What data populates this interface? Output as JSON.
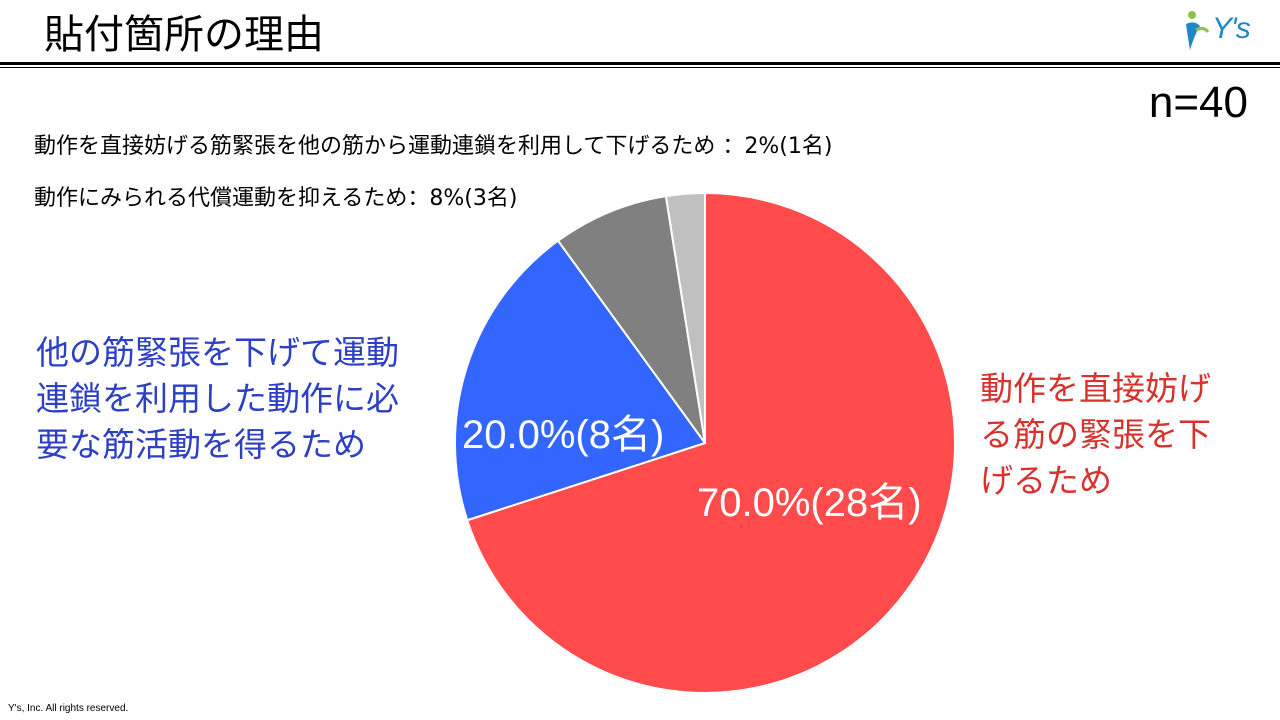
{
  "header": {
    "title": "貼付箇所の理由",
    "logo_text": "Y's"
  },
  "sample_size": "n=40",
  "notes": {
    "smallest": "動作を直接妨げる筋緊張を他の筋から運動連鎖を利用して下げるため ：2%(1名)",
    "second_smallest": "動作にみられる代償運動を抑えるため：8%(3名)"
  },
  "labels": {
    "blue_line1": "他の筋緊張を下げて運動",
    "blue_line2": "連鎖を利用した動作に必",
    "blue_line3": "要な筋活動を得るため",
    "red_line1": "動作を直接妨げ",
    "red_line2": "る筋の緊張を下",
    "red_line3": "げるため",
    "blue_pct": "20.0%(8名)",
    "red_pct": "70.0%(28名)"
  },
  "footer": "Y's, Inc. All rights reserved.",
  "chart_data": {
    "type": "pie",
    "start": "12 o'clock",
    "direction": "clockwise",
    "slices": [
      {
        "label": "動作を直接妨げる筋の緊張を下げるため",
        "value": 70.0,
        "count": 28,
        "color": "#ff4b4b"
      },
      {
        "label": "他の筋緊張を下げて運動連鎖を利用した動作に必要な筋活動を得るため",
        "value": 20.0,
        "count": 8,
        "color": "#3366ff"
      },
      {
        "label": "動作にみられる代償運動を抑えるため",
        "value": 7.5,
        "count": 3,
        "color": "#808080"
      },
      {
        "label": "動作を直接妨げる筋緊張を他の筋から運動連鎖を利用して下げるため",
        "value": 2.5,
        "count": 1,
        "color": "#c0c0c0"
      }
    ]
  }
}
